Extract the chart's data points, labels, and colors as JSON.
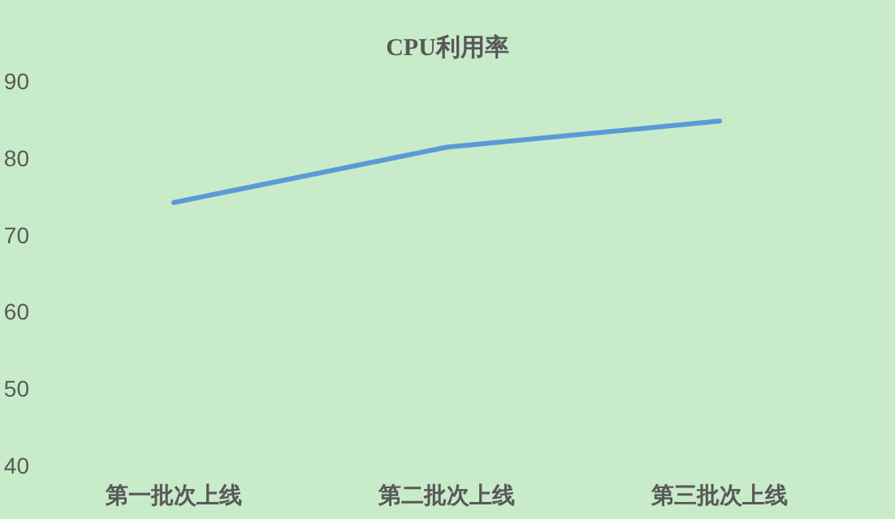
{
  "chart_data": {
    "type": "line",
    "title": "CPU利用率",
    "categories": [
      "第一批次上线",
      "第二批次上线",
      "第三批次上线"
    ],
    "series": [
      {
        "color": "#5b9bd5",
        "values": [
          74.2,
          81.4,
          84.8
        ]
      }
    ],
    "ylim": [
      40,
      90
    ],
    "yticks": [
      40,
      50,
      60,
      70,
      80,
      90
    ],
    "grid": false,
    "marker": "none",
    "line_style": "solid"
  }
}
